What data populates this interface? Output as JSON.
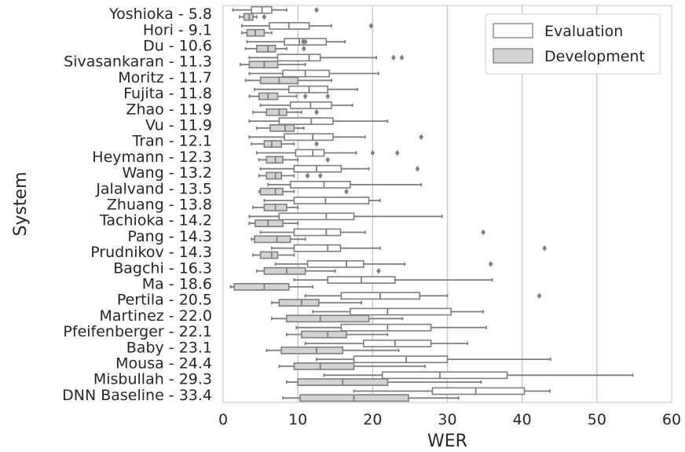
{
  "chart_data": {
    "type": "boxplot",
    "orientation": "horizontal",
    "xlabel": "WER",
    "ylabel": "System",
    "xlim": [
      0,
      60
    ],
    "xticks": [
      0,
      10,
      20,
      30,
      40,
      50,
      60
    ],
    "grid": "vertical",
    "legend_position": "top-right",
    "colors": {
      "Evaluation": "#ffffff",
      "Development": "#d3d3d3",
      "edge": "#7f7f7f",
      "grid": "#cccccc"
    },
    "categories": [
      "Yoshioka -  5.8",
      "Hori -  9.1",
      "Du -  10.6",
      "Sivasankaran -  11.3",
      "Moritz -  11.7",
      "Fujita -  11.8",
      "Zhao -  11.9",
      "Vu -  11.9",
      "Tran -  12.1",
      "Heymann -  12.3",
      "Wang -  13.2",
      "Jalalvand -  13.5",
      "Zhuang -  13.8",
      "Tachioka -  14.2",
      "Pang -  14.3",
      "Prudnikov -  14.3",
      "Bagchi -  16.3",
      "Ma -  18.6",
      "Pertila -  20.5",
      "Martinez -  22.0",
      "Pfeifenberger -  22.1",
      "Baby -  23.1",
      "Mousa -  24.4",
      "Misbullah -  29.3",
      "DNN Baseline -  33.4"
    ],
    "series": [
      {
        "name": "Evaluation",
        "boxes": [
          {
            "whislo": 1.3,
            "q1": 3.8,
            "med": 5.2,
            "q3": 6.5,
            "whishi": 8.5,
            "fliers": [
              12.5
            ]
          },
          {
            "whislo": 2.5,
            "q1": 6.2,
            "med": 8.8,
            "q3": 11.5,
            "whishi": 14.5,
            "fliers": [
              19.8
            ]
          },
          {
            "whislo": 3.2,
            "q1": 8.2,
            "med": 10.2,
            "q3": 13.8,
            "whishi": 16.3,
            "fliers": [
              10.7,
              11.0
            ]
          },
          {
            "whislo": 3.5,
            "q1": 7.3,
            "med": 11.5,
            "q3": 13.0,
            "whishi": 20.5,
            "fliers": [
              22.8,
              23.9
            ]
          },
          {
            "whislo": 3.5,
            "q1": 8.0,
            "med": 11.0,
            "q3": 14.2,
            "whishi": 20.8,
            "fliers": []
          },
          {
            "whislo": 4.2,
            "q1": 8.8,
            "med": 11.5,
            "q3": 14.0,
            "whishi": 18.0,
            "fliers": []
          },
          {
            "whislo": 5.0,
            "q1": 9.0,
            "med": 11.7,
            "q3": 14.5,
            "whishi": 17.3,
            "fliers": []
          },
          {
            "whislo": 3.5,
            "q1": 7.5,
            "med": 11.8,
            "q3": 14.7,
            "whishi": 22.0,
            "fliers": []
          },
          {
            "whislo": 3.5,
            "q1": 8.2,
            "med": 12.0,
            "q3": 14.7,
            "whishi": 19.0,
            "fliers": [
              26.5
            ]
          },
          {
            "whislo": 4.5,
            "q1": 9.7,
            "med": 12.0,
            "q3": 13.5,
            "whishi": 17.8,
            "fliers": [
              20.0,
              23.3
            ]
          },
          {
            "whislo": 5.0,
            "q1": 9.5,
            "med": 12.5,
            "q3": 15.8,
            "whishi": 19.5,
            "fliers": [
              26.0
            ]
          },
          {
            "whislo": 6.0,
            "q1": 9.0,
            "med": 13.5,
            "q3": 17.0,
            "whishi": 26.5,
            "fliers": []
          },
          {
            "whislo": 5.5,
            "q1": 9.5,
            "med": 13.7,
            "q3": 19.5,
            "whishi": 21.0,
            "fliers": []
          },
          {
            "whislo": 3.5,
            "q1": 7.5,
            "med": 13.8,
            "q3": 17.5,
            "whishi": 29.3,
            "fliers": []
          },
          {
            "whislo": 5.0,
            "q1": 9.5,
            "med": 13.8,
            "q3": 15.7,
            "whishi": 19.0,
            "fliers": [
              34.8
            ]
          },
          {
            "whislo": 6.5,
            "q1": 9.5,
            "med": 14.0,
            "q3": 15.7,
            "whishi": 21.0,
            "fliers": [
              43.0
            ]
          },
          {
            "whislo": 7.0,
            "q1": 11.3,
            "med": 16.5,
            "q3": 18.8,
            "whishi": 24.3,
            "fliers": [
              35.8
            ]
          },
          {
            "whislo": 9.5,
            "q1": 14.0,
            "med": 18.5,
            "q3": 23.0,
            "whishi": 36.0,
            "fliers": []
          },
          {
            "whislo": 11.0,
            "q1": 15.8,
            "med": 21.0,
            "q3": 26.3,
            "whishi": 30.0,
            "fliers": [
              42.3
            ]
          },
          {
            "whislo": 12.0,
            "q1": 17.0,
            "med": 22.0,
            "q3": 30.5,
            "whishi": 34.8,
            "fliers": []
          },
          {
            "whislo": 9.8,
            "q1": 15.8,
            "med": 22.0,
            "q3": 27.8,
            "whishi": 35.2,
            "fliers": []
          },
          {
            "whislo": 11.0,
            "q1": 18.8,
            "med": 23.0,
            "q3": 27.8,
            "whishi": 32.7,
            "fliers": []
          },
          {
            "whislo": 12.5,
            "q1": 17.5,
            "med": 24.5,
            "q3": 30.0,
            "whishi": 43.8,
            "fliers": []
          },
          {
            "whislo": 13.5,
            "q1": 21.3,
            "med": 29.0,
            "q3": 38.0,
            "whishi": 54.8,
            "fliers": []
          },
          {
            "whislo": 17.5,
            "q1": 28.0,
            "med": 33.8,
            "q3": 40.3,
            "whishi": 43.7,
            "fliers": []
          }
        ]
      },
      {
        "name": "Development",
        "boxes": [
          {
            "whislo": 2.2,
            "q1": 2.8,
            "med": 3.5,
            "q3": 4.0,
            "whishi": 4.5,
            "fliers": [
              5.5
            ]
          },
          {
            "whislo": 2.5,
            "q1": 3.2,
            "med": 4.3,
            "q3": 5.5,
            "whishi": 6.5,
            "fliers": []
          },
          {
            "whislo": 3.0,
            "q1": 4.5,
            "med": 6.0,
            "q3": 7.0,
            "whishi": 8.5,
            "fliers": [
              10.8
            ]
          },
          {
            "whislo": 2.3,
            "q1": 3.5,
            "med": 5.5,
            "q3": 7.3,
            "whishi": 11.0,
            "fliers": []
          },
          {
            "whislo": 3.0,
            "q1": 5.0,
            "med": 7.5,
            "q3": 10.0,
            "whishi": 14.5,
            "fliers": []
          },
          {
            "whislo": 3.5,
            "q1": 4.8,
            "med": 6.0,
            "q3": 7.3,
            "whishi": 9.8,
            "fliers": [
              11.0,
              14.0
            ]
          },
          {
            "whislo": 4.0,
            "q1": 5.8,
            "med": 7.5,
            "q3": 8.5,
            "whishi": 10.5,
            "fliers": [
              12.5
            ]
          },
          {
            "whislo": 4.5,
            "q1": 6.3,
            "med": 8.3,
            "q3": 9.5,
            "whishi": 10.8,
            "fliers": []
          },
          {
            "whislo": 3.8,
            "q1": 5.5,
            "med": 6.5,
            "q3": 7.8,
            "whishi": 9.5,
            "fliers": [
              12.5
            ]
          },
          {
            "whislo": 4.8,
            "q1": 5.8,
            "med": 7.0,
            "q3": 8.0,
            "whishi": 10.0,
            "fliers": [
              14.0
            ]
          },
          {
            "whislo": 4.8,
            "q1": 5.8,
            "med": 7.0,
            "q3": 7.8,
            "whishi": 9.5,
            "fliers": [
              11.3,
              13.0
            ]
          },
          {
            "whislo": 4.8,
            "q1": 5.0,
            "med": 7.0,
            "q3": 8.0,
            "whishi": 9.5,
            "fliers": [
              16.5
            ]
          },
          {
            "whislo": 4.0,
            "q1": 5.5,
            "med": 7.0,
            "q3": 8.5,
            "whishi": 10.0,
            "fliers": []
          },
          {
            "whislo": 3.5,
            "q1": 4.3,
            "med": 6.0,
            "q3": 8.0,
            "whishi": 10.0,
            "fliers": []
          },
          {
            "whislo": 3.8,
            "q1": 4.2,
            "med": 7.2,
            "q3": 9.0,
            "whishi": 11.0,
            "fliers": []
          },
          {
            "whislo": 4.0,
            "q1": 5.0,
            "med": 6.5,
            "q3": 7.3,
            "whishi": 9.5,
            "fliers": []
          },
          {
            "whislo": 4.5,
            "q1": 5.5,
            "med": 8.5,
            "q3": 11.0,
            "whishi": 15.0,
            "fliers": [
              20.8
            ]
          },
          {
            "whislo": 1.0,
            "q1": 1.5,
            "med": 5.5,
            "q3": 8.8,
            "whishi": 12.0,
            "fliers": []
          },
          {
            "whislo": 6.5,
            "q1": 7.5,
            "med": 10.5,
            "q3": 12.8,
            "whishi": 18.5,
            "fliers": []
          },
          {
            "whislo": 6.5,
            "q1": 8.5,
            "med": 13.0,
            "q3": 19.5,
            "whishi": 24.0,
            "fliers": []
          },
          {
            "whislo": 8.5,
            "q1": 10.5,
            "med": 14.0,
            "q3": 16.5,
            "whishi": 22.0,
            "fliers": []
          },
          {
            "whislo": 5.8,
            "q1": 7.8,
            "med": 12.5,
            "q3": 16.0,
            "whishi": 23.5,
            "fliers": []
          },
          {
            "whislo": 7.5,
            "q1": 9.5,
            "med": 13.0,
            "q3": 17.5,
            "whishi": 27.0,
            "fliers": []
          },
          {
            "whislo": 8.5,
            "q1": 10.0,
            "med": 16.0,
            "q3": 22.0,
            "whishi": 34.5,
            "fliers": []
          },
          {
            "whislo": 8.0,
            "q1": 10.3,
            "med": 17.5,
            "q3": 24.8,
            "whishi": 31.5,
            "fliers": []
          }
        ]
      }
    ]
  }
}
